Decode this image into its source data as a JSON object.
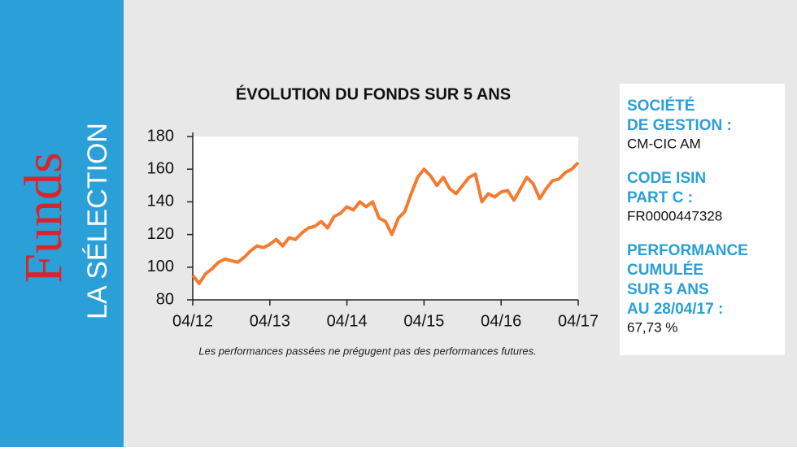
{
  "sidebar": {
    "brand": "Funds",
    "subtitle": "LA SÉLECTION"
  },
  "info": [
    {
      "label": [
        "SOCIÉTÉ",
        "DE GESTION :"
      ],
      "value": "CM-CIC AM"
    },
    {
      "label": [
        "CODE ISIN",
        "PART C :"
      ],
      "value": "FR0000447328"
    },
    {
      "label": [
        "PERFORMANCE",
        "CUMULÉE",
        "SUR 5 ANS",
        "AU 28/04/17 :"
      ],
      "value": "67,73 %"
    }
  ],
  "chart_data": {
    "type": "line",
    "title": "ÉVOLUTION DU FONDS SUR 5 ANS",
    "note": "Les performances passées ne prégugent pas des performances futures.",
    "x": [
      "04/12",
      "05/12",
      "06/12",
      "07/12",
      "08/12",
      "09/12",
      "10/12",
      "11/12",
      "12/12",
      "01/13",
      "02/13",
      "03/13",
      "04/13",
      "05/13",
      "06/13",
      "07/13",
      "08/13",
      "09/13",
      "10/13",
      "11/13",
      "12/13",
      "01/14",
      "02/14",
      "03/14",
      "04/14",
      "05/14",
      "06/14",
      "07/14",
      "08/14",
      "09/14",
      "10/14",
      "11/14",
      "12/14",
      "01/15",
      "02/15",
      "03/15",
      "04/15",
      "05/15",
      "06/15",
      "07/15",
      "08/15",
      "09/15",
      "10/15",
      "11/15",
      "12/15",
      "01/16",
      "02/16",
      "03/16",
      "04/16",
      "05/16",
      "06/16",
      "07/16",
      "08/16",
      "09/16",
      "10/16",
      "11/16",
      "12/16",
      "01/17",
      "02/17",
      "03/17",
      "04/17"
    ],
    "series": [
      {
        "color": "#f47b30",
        "values": [
          95,
          90,
          96,
          99,
          103,
          105,
          104,
          103,
          106,
          110,
          113,
          112,
          114,
          117,
          113,
          118,
          117,
          121,
          124,
          125,
          128,
          124,
          131,
          133,
          137,
          135,
          140,
          137,
          140,
          130,
          128,
          120,
          130,
          134,
          145,
          155,
          160,
          156,
          150,
          155,
          148,
          145,
          150,
          155,
          157,
          140,
          145,
          143,
          146,
          147,
          141,
          148,
          155,
          151,
          142,
          148,
          153,
          154,
          158,
          160,
          164
        ]
      }
    ],
    "xticks": [
      "04/12",
      "04/13",
      "04/14",
      "04/15",
      "04/16",
      "04/17"
    ],
    "ylim": [
      80,
      180
    ],
    "yticks": [
      80,
      100,
      120,
      140,
      160,
      180
    ],
    "grid": false
  }
}
